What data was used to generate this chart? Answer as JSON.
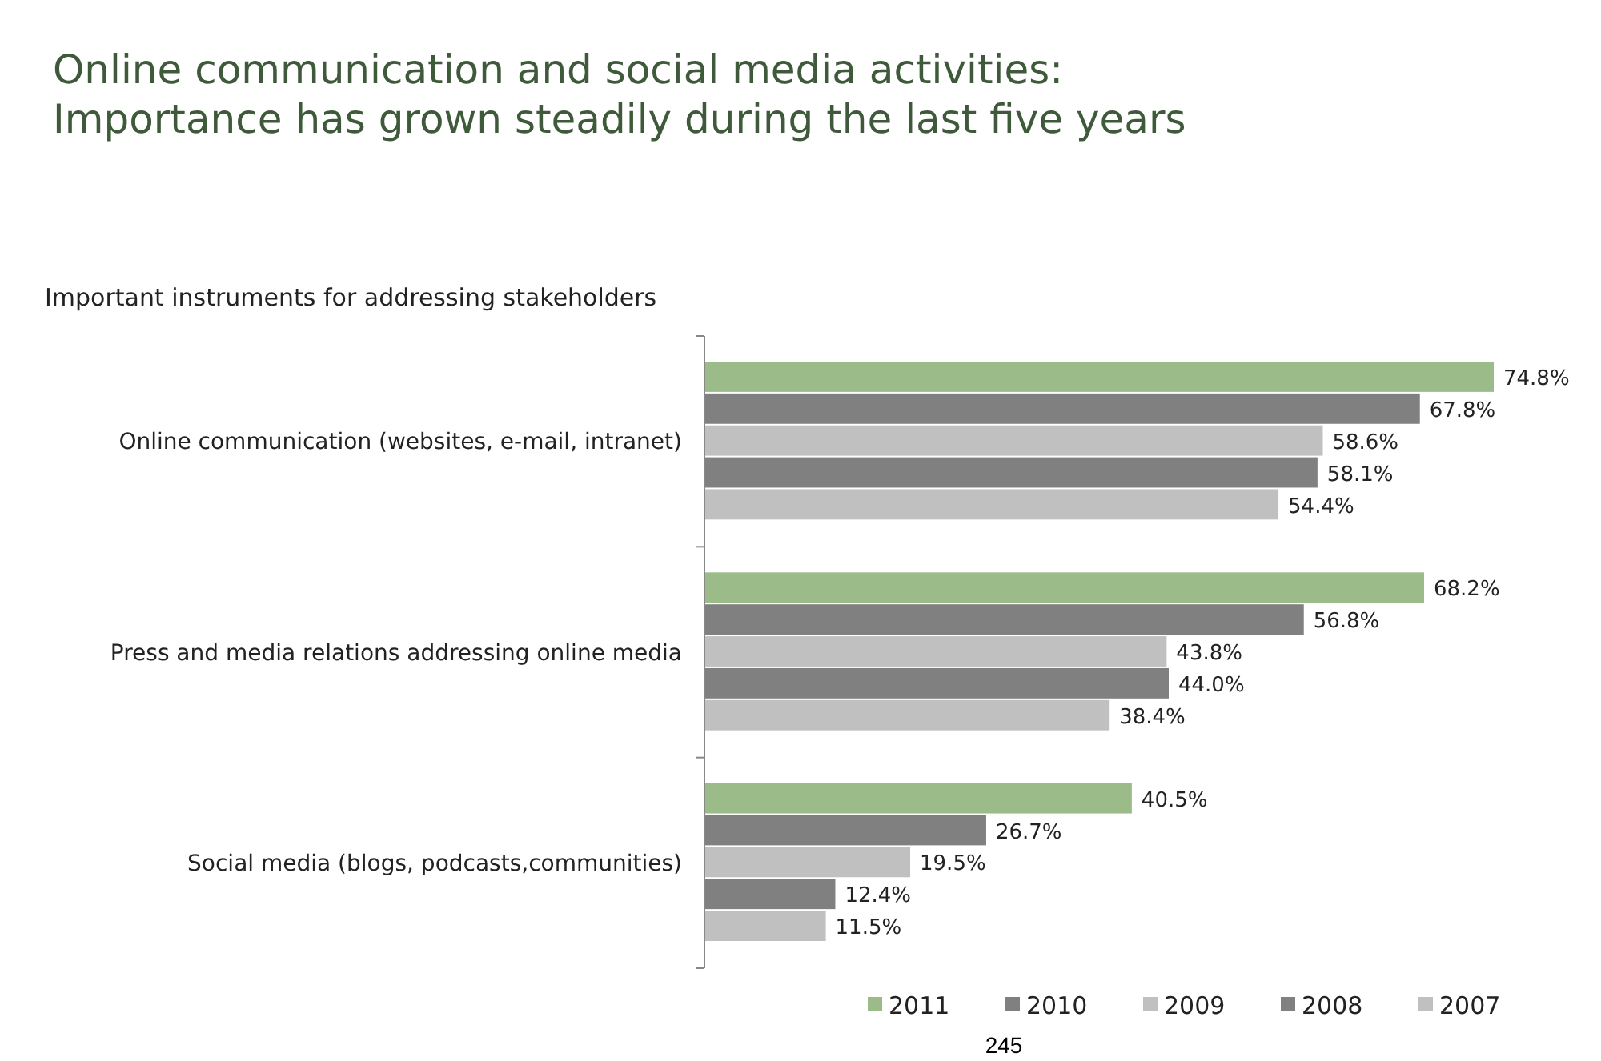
{
  "chart_data": {
    "type": "bar",
    "orientation": "horizontal",
    "title": "Online communication and social media activities:\nImportance has grown steadily during the last five years",
    "subtitle": "Important instruments for addressing stakeholders",
    "categories": [
      "Online communication (websites, e-mail, intranet)",
      "Press and media relations addressing online media",
      "Social media (blogs, podcasts,communities)"
    ],
    "series": [
      {
        "name": "2011",
        "color": "#9bbb89",
        "values": [
          74.8,
          68.2,
          40.5
        ],
        "value_labels": [
          "74.8%",
          "68.2%",
          "40.5%"
        ]
      },
      {
        "name": "2010",
        "color": "#808080",
        "values": [
          67.8,
          56.8,
          26.7
        ],
        "value_labels": [
          "67.8%",
          "56.8%",
          "26.7%"
        ]
      },
      {
        "name": "2009",
        "color": "#c0c0c0",
        "values": [
          58.6,
          43.8,
          19.5
        ],
        "value_labels": [
          "58.6%",
          "43.8%",
          "19.5%"
        ]
      },
      {
        "name": "2008",
        "color": "#808080",
        "values": [
          58.1,
          44.0,
          12.4
        ],
        "value_labels": [
          "58.1%",
          "44.0%",
          "12.4%"
        ]
      },
      {
        "name": "2007",
        "color": "#c0c0c0",
        "values": [
          54.4,
          38.4,
          11.5
        ],
        "value_labels": [
          "54.4%",
          "38.4%",
          "11.5%"
        ]
      }
    ],
    "legend": "bottom",
    "annotations": [
      "245"
    ]
  }
}
